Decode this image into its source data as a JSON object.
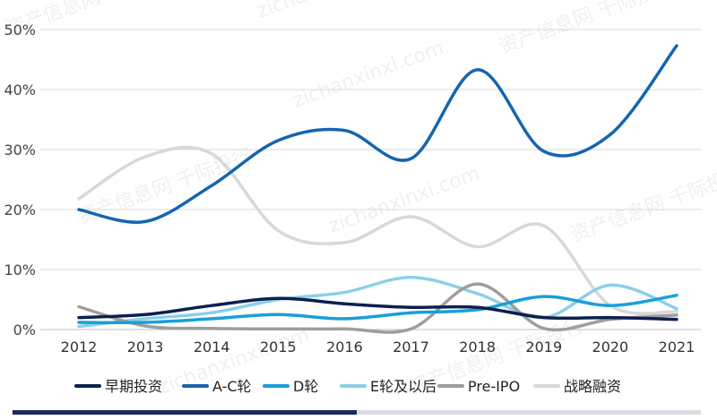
{
  "watermark": {
    "text_cn": "资产信息网 千际投行",
    "text_en": "zichanxinxi.com"
  },
  "colors": {
    "grid": "#d9d9d9",
    "axis": "#bfbfbf"
  },
  "chart_data": {
    "type": "line",
    "smooth": true,
    "x": [
      "2012",
      "2013",
      "2014",
      "2015",
      "2016",
      "2017",
      "2018",
      "2019",
      "2020",
      "2021"
    ],
    "ylim": [
      0,
      50
    ],
    "yticks": [
      "0%",
      "10%",
      "20%",
      "30%",
      "40%",
      "50%"
    ],
    "grid": "horizontal",
    "legend_position": "bottom",
    "series": [
      {
        "name": "早期投资",
        "color": "#0d1f4f",
        "values": [
          2,
          2.5,
          4,
          5.2,
          4.3,
          3.7,
          3.7,
          2,
          2,
          1.7
        ]
      },
      {
        "name": "A-C轮",
        "color": "#1565b0",
        "values": [
          20,
          18,
          24,
          31.5,
          33.2,
          28.5,
          43.3,
          29.7,
          32.5,
          47.3
        ]
      },
      {
        "name": "D轮",
        "color": "#1a9fd9",
        "values": [
          1.2,
          1.2,
          1.8,
          2.5,
          1.8,
          2.8,
          3.3,
          5.5,
          4,
          5.7
        ]
      },
      {
        "name": "E轮及以后",
        "color": "#8ccfe8",
        "values": [
          0.5,
          1.8,
          2.8,
          5,
          6.2,
          8.7,
          6,
          2,
          7.4,
          3.5
        ]
      },
      {
        "name": "Pre-IPO",
        "color": "#9e9e9e",
        "values": [
          3.8,
          0.6,
          0.2,
          0.1,
          0.1,
          0.1,
          7.6,
          0.2,
          1.7,
          2.4
        ]
      },
      {
        "name": "战略融资",
        "color": "#d8d8d8",
        "values": [
          21.8,
          28.8,
          29.3,
          16.5,
          14.5,
          18.8,
          13.8,
          17.3,
          4,
          3
        ]
      }
    ]
  },
  "progress": {
    "fraction": 0.5
  }
}
